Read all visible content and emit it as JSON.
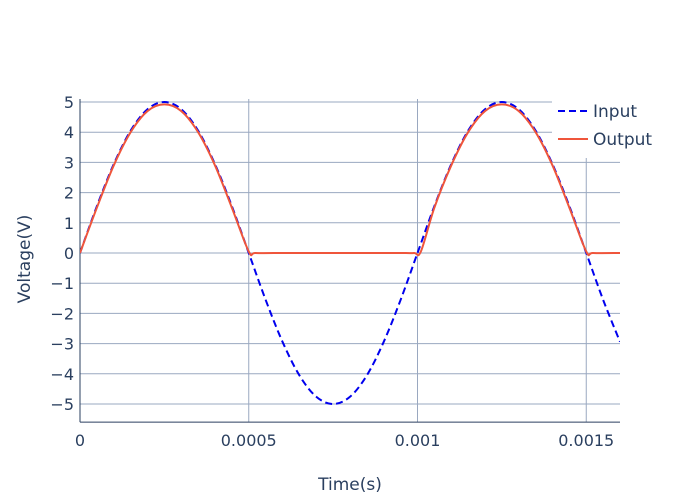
{
  "chart_data": {
    "type": "line",
    "xlabel": "Time(s)",
    "ylabel": "Voltage(V)",
    "xlim": [
      0,
      0.0016
    ],
    "ylim": [
      -5.6,
      5.1
    ],
    "xticks": [
      0,
      0.0005,
      0.001,
      0.0015
    ],
    "xtick_labels": [
      "0",
      "0.0005",
      "0.001",
      "0.0015"
    ],
    "yticks": [
      5,
      4,
      3,
      2,
      1,
      0,
      -1,
      -2,
      -3,
      -4,
      -5
    ],
    "ytick_labels": [
      "5",
      "4",
      "3",
      "2",
      "1",
      "0",
      "−1",
      "−2",
      "−3",
      "−4",
      "−5"
    ],
    "grid": true,
    "legend_position": "top-right",
    "series": [
      {
        "name": "Input",
        "color": "#0000ee",
        "dash": "dashed",
        "x": [
          0,
          5e-05,
          0.0001,
          0.00015,
          0.0002,
          0.00025,
          0.0003,
          0.00035,
          0.0004,
          0.00045,
          0.0005,
          0.00055,
          0.0006,
          0.00065,
          0.0007,
          0.00075,
          0.0008,
          0.00085,
          0.0009,
          0.00095,
          0.001,
          0.00105,
          0.0011,
          0.00115,
          0.0012,
          0.00125,
          0.0013,
          0.00135,
          0.0014,
          0.00145,
          0.0015,
          0.00155,
          0.0016
        ],
        "y": [
          0,
          1.55,
          2.94,
          4.05,
          4.76,
          5.0,
          4.76,
          4.05,
          2.94,
          1.55,
          0,
          -1.55,
          -2.94,
          -4.05,
          -4.76,
          -5.0,
          -4.76,
          -4.05,
          -2.94,
          -1.55,
          0,
          1.55,
          2.94,
          4.05,
          4.76,
          5.0,
          4.76,
          4.05,
          2.94,
          1.55,
          0,
          -1.55,
          -2.94
        ]
      },
      {
        "name": "Output",
        "color": "#ef553b",
        "dash": "solid",
        "x": [
          0,
          5e-05,
          0.0001,
          0.00015,
          0.0002,
          0.00025,
          0.0003,
          0.00035,
          0.0004,
          0.00045,
          0.0005,
          0.00052,
          0.0006,
          0.00065,
          0.0007,
          0.00075,
          0.0008,
          0.00085,
          0.0009,
          0.00095,
          0.00099,
          0.00101,
          0.00105,
          0.0011,
          0.00115,
          0.0012,
          0.00125,
          0.0013,
          0.00135,
          0.0014,
          0.00145,
          0.0015,
          0.00152,
          0.0016
        ],
        "y": [
          0,
          1.5,
          2.9,
          4.0,
          4.7,
          4.92,
          4.7,
          4.0,
          2.9,
          1.5,
          0.05,
          0,
          0,
          0,
          0,
          0,
          0,
          0,
          0,
          0,
          0,
          0.05,
          1.5,
          2.9,
          4.0,
          4.7,
          4.92,
          4.7,
          4.0,
          2.9,
          1.5,
          0.05,
          0,
          0
        ]
      }
    ]
  }
}
